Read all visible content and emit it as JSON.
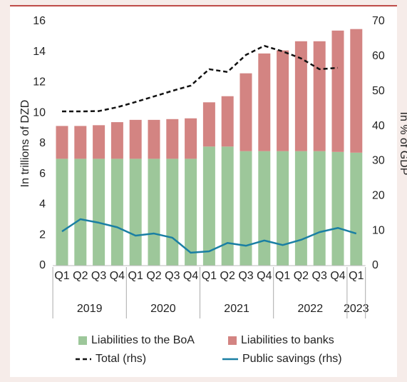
{
  "chart_data": {
    "type": "bar",
    "stacked": true,
    "y_label": "In trillions of DZD",
    "y2_label": "In % of GDP",
    "categories": [
      "Q1",
      "Q2",
      "Q3",
      "Q4",
      "Q1",
      "Q2",
      "Q3",
      "Q4",
      "Q1",
      "Q2",
      "Q3",
      "Q4",
      "Q1",
      "Q2",
      "Q3",
      "Q4",
      "Q1"
    ],
    "year_groups": [
      "2019",
      "2020",
      "2021",
      "2022",
      "2023"
    ],
    "ylim": [
      0,
      16
    ],
    "yticks": [
      0,
      2,
      4,
      6,
      8,
      10,
      12,
      14,
      16
    ],
    "y2lim": [
      0,
      70
    ],
    "y2ticks": [
      0,
      10,
      20,
      30,
      40,
      50,
      60,
      70
    ],
    "series": [
      {
        "name": "Liabilities to the BoA",
        "type": "bar",
        "color": "#9dc79a",
        "values": [
          7.0,
          7.0,
          7.0,
          7.0,
          7.0,
          7.0,
          7.0,
          7.0,
          7.8,
          7.8,
          7.5,
          7.5,
          7.5,
          7.5,
          7.5,
          7.45,
          7.4
        ]
      },
      {
        "name": "Liabilities to banks",
        "type": "bar",
        "color": "#d38482",
        "values": [
          2.15,
          2.15,
          2.2,
          2.4,
          2.55,
          2.55,
          2.6,
          2.65,
          2.9,
          3.3,
          5.1,
          6.4,
          6.6,
          7.2,
          7.2,
          7.95,
          8.1
        ]
      },
      {
        "name": "Total (rhs)",
        "type": "line",
        "axis": "y2",
        "color": "#111111",
        "dashed": true,
        "values": [
          44.2,
          44.2,
          44.3,
          45.4,
          46.9,
          48.5,
          50.1,
          51.6,
          56.3,
          55.5,
          60.4,
          63.0,
          61.4,
          59.4,
          56.3,
          56.7,
          null
        ]
      },
      {
        "name": "Public savings (rhs)",
        "type": "line",
        "axis": "y2",
        "color": "#1a7fa3",
        "dashed": false,
        "values": [
          9.8,
          13.3,
          12.3,
          11.0,
          8.6,
          9.2,
          8.0,
          3.7,
          4.1,
          6.5,
          5.7,
          7.2,
          5.9,
          7.4,
          9.6,
          10.8,
          9.2
        ]
      }
    ]
  }
}
